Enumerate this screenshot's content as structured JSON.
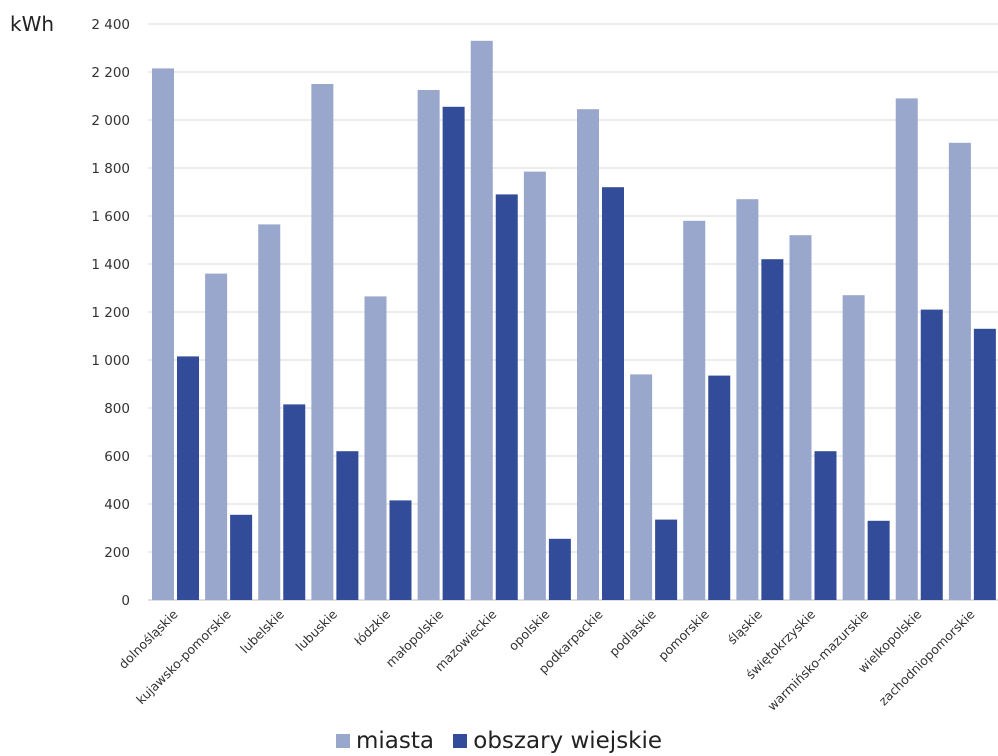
{
  "chart_data": {
    "type": "bar",
    "ylabel": "kWh",
    "ylim": [
      0,
      2400
    ],
    "yticks": [
      "0",
      "200",
      "400",
      "600",
      "800",
      "1 000",
      "1 200",
      "1 400",
      "1 600",
      "1 800",
      "2 000",
      "2 200",
      "2 400"
    ],
    "grid": true,
    "legend_position": "bottom",
    "categories": [
      "dolnośląskie",
      "kujawsko-pomorskie",
      "lubelskie",
      "lubuskie",
      "łódzkie",
      "małopolskie",
      "mazowieckie",
      "opolskie",
      "podkarpackie",
      "podlaskie",
      "pomorskie",
      "śląskie",
      "świętokrzyskie",
      "warmińsko-mazurskie",
      "wielkopolskie",
      "zachodniopomorskie"
    ],
    "series": [
      {
        "name": "miasta",
        "color": "#9aa7cc",
        "values": [
          2215,
          1360,
          1565,
          2150,
          1265,
          2125,
          2330,
          1785,
          2045,
          940,
          1580,
          1670,
          1520,
          1270,
          2090,
          1905
        ]
      },
      {
        "name": "obszary wiejskie",
        "color": "#334c99",
        "values": [
          1015,
          355,
          815,
          620,
          415,
          2055,
          1690,
          255,
          1720,
          335,
          935,
          1420,
          620,
          330,
          1210,
          1130
        ]
      }
    ]
  }
}
